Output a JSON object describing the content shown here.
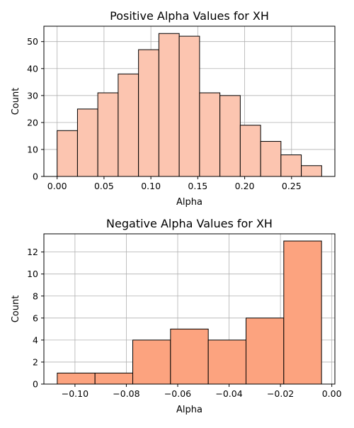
{
  "figure": {
    "background": "#ffffff",
    "grid_color": "#b0b0b0",
    "edge_color": "#000000"
  },
  "chart_data": [
    {
      "type": "bar",
      "subtype": "histogram",
      "title": "Positive Alpha Values for XH",
      "xlabel": "Alpha",
      "ylabel": "Count",
      "bin_edges": [
        0.0,
        0.0217,
        0.0434,
        0.0651,
        0.0868,
        0.1085,
        0.1302,
        0.1519,
        0.1736,
        0.1953,
        0.217,
        0.2387,
        0.2604,
        0.2821
      ],
      "values": [
        17,
        25,
        31,
        38,
        47,
        53,
        52,
        31,
        30,
        19,
        13,
        8,
        4
      ],
      "xlim": [
        -0.0141,
        0.2962
      ],
      "ylim": [
        0,
        55.7
      ],
      "xticks": [
        0.0,
        0.05,
        0.1,
        0.15,
        0.2,
        0.25
      ],
      "xtick_labels": [
        "0.00",
        "0.05",
        "0.10",
        "0.15",
        "0.20",
        "0.25"
      ],
      "yticks": [
        0,
        10,
        20,
        30,
        40,
        50
      ],
      "ytick_labels": [
        "0",
        "10",
        "20",
        "30",
        "40",
        "50"
      ],
      "bar_color": "#fcc5b0",
      "grid": true
    },
    {
      "type": "bar",
      "subtype": "histogram",
      "title": "Negative Alpha Values for XH",
      "xlabel": "Alpha",
      "ylabel": "Count",
      "bin_edges": [
        -0.1069,
        -0.0922,
        -0.0775,
        -0.0628,
        -0.0481,
        -0.0334,
        -0.0187,
        -0.004
      ],
      "values": [
        1,
        1,
        4,
        5,
        4,
        6,
        13
      ],
      "xlim": [
        -0.1121,
        0.0012
      ],
      "ylim": [
        0,
        13.65
      ],
      "xticks": [
        -0.1,
        -0.08,
        -0.06,
        -0.04,
        -0.02,
        0.0
      ],
      "xtick_labels": [
        "−0.10",
        "−0.08",
        "−0.06",
        "−0.04",
        "−0.02",
        "0.00"
      ],
      "yticks": [
        0,
        2,
        4,
        6,
        8,
        10,
        12
      ],
      "ytick_labels": [
        "0",
        "2",
        "4",
        "6",
        "8",
        "10",
        "12"
      ],
      "bar_color": "#fca37f",
      "grid": true
    }
  ]
}
